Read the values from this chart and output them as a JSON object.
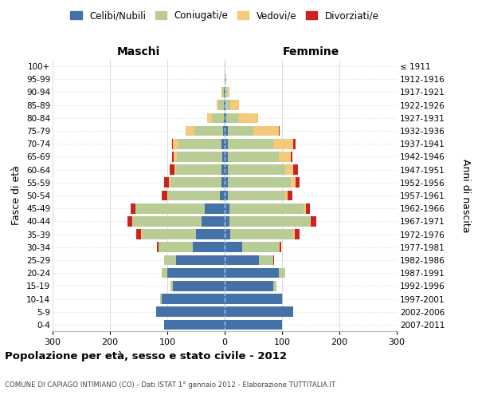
{
  "age_groups": [
    "0-4",
    "5-9",
    "10-14",
    "15-19",
    "20-24",
    "25-29",
    "30-34",
    "35-39",
    "40-44",
    "45-49",
    "50-54",
    "55-59",
    "60-64",
    "65-69",
    "70-74",
    "75-79",
    "80-84",
    "85-89",
    "90-94",
    "95-99",
    "100+"
  ],
  "birth_years": [
    "2007-2011",
    "2002-2006",
    "1997-2001",
    "1992-1996",
    "1987-1991",
    "1982-1986",
    "1977-1981",
    "1972-1976",
    "1967-1971",
    "1962-1966",
    "1957-1961",
    "1952-1956",
    "1947-1951",
    "1942-1946",
    "1937-1941",
    "1932-1936",
    "1927-1931",
    "1922-1926",
    "1917-1921",
    "1912-1916",
    "≤ 1911"
  ],
  "males_celibe": [
    105,
    120,
    110,
    90,
    100,
    85,
    55,
    50,
    40,
    35,
    8,
    5,
    5,
    4,
    5,
    3,
    2,
    1,
    1,
    0,
    0
  ],
  "males_coniugato": [
    0,
    0,
    2,
    5,
    10,
    20,
    60,
    95,
    120,
    120,
    90,
    90,
    80,
    80,
    75,
    50,
    20,
    10,
    3,
    0,
    0
  ],
  "males_vedovo": [
    0,
    0,
    0,
    0,
    0,
    0,
    0,
    1,
    1,
    1,
    2,
    2,
    3,
    5,
    10,
    15,
    8,
    3,
    1,
    0,
    0
  ],
  "males_divorziato": [
    0,
    0,
    0,
    0,
    0,
    1,
    3,
    8,
    8,
    8,
    10,
    8,
    8,
    2,
    1,
    0,
    0,
    0,
    0,
    0,
    0
  ],
  "females_nubile": [
    100,
    120,
    100,
    85,
    95,
    60,
    30,
    10,
    8,
    8,
    5,
    5,
    5,
    5,
    5,
    5,
    3,
    2,
    2,
    1,
    0
  ],
  "females_coniugata": [
    0,
    0,
    2,
    5,
    10,
    25,
    65,
    110,
    140,
    130,
    100,
    110,
    100,
    90,
    80,
    45,
    20,
    8,
    2,
    0,
    0
  ],
  "females_vedova": [
    0,
    0,
    0,
    0,
    0,
    0,
    1,
    2,
    2,
    3,
    5,
    8,
    15,
    20,
    35,
    45,
    35,
    15,
    5,
    2,
    0
  ],
  "females_divorziata": [
    0,
    0,
    0,
    0,
    0,
    1,
    3,
    8,
    10,
    8,
    8,
    8,
    8,
    3,
    3,
    1,
    0,
    0,
    0,
    0,
    0
  ],
  "color_celibe": "#4472a8",
  "color_coniugato": "#b8cc96",
  "color_vedovo": "#f5c97a",
  "color_divorziato": "#cc2222",
  "xlim": 300,
  "title": "Popolazione per età, sesso e stato civile - 2012",
  "subtitle": "COMUNE DI CAPIAGO INTIMIANO (CO) - Dati ISTAT 1° gennaio 2012 - Elaborazione TUTTITALIA.IT",
  "ylabel_left": "Fasce di età",
  "ylabel_right": "Anni di nascita",
  "label_maschi": "Maschi",
  "label_femmine": "Femmine",
  "legend_labels": [
    "Celibi/Nubili",
    "Coniugati/e",
    "Vedovi/e",
    "Divorziati/e"
  ]
}
